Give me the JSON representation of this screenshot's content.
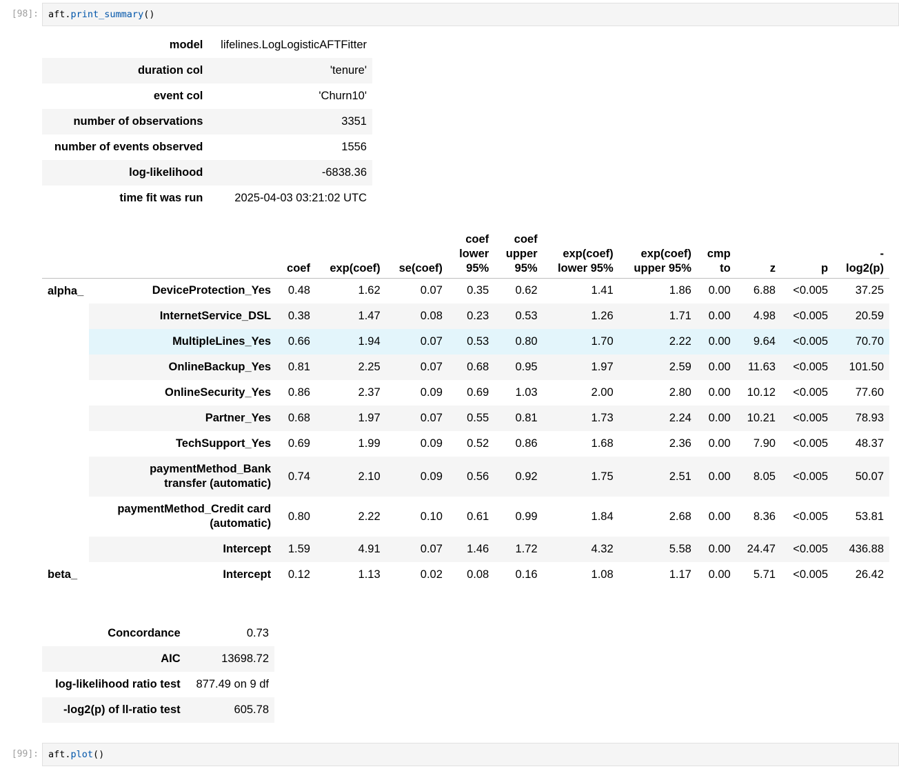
{
  "cells": [
    {
      "prompt": "[98]:",
      "code": {
        "obj": "aft",
        "dot": ".",
        "method": "print_summary",
        "args": "()"
      }
    },
    {
      "prompt": "[99]:",
      "code": {
        "obj": "aft",
        "dot": ".",
        "method": "plot",
        "args": "()"
      }
    }
  ],
  "summary": [
    {
      "label": "model",
      "value": "lifelines.LogLogisticAFTFitter"
    },
    {
      "label": "duration col",
      "value": "'tenure'"
    },
    {
      "label": "event col",
      "value": "'Churn10'"
    },
    {
      "label": "number of observations",
      "value": "3351"
    },
    {
      "label": "number of events observed",
      "value": "1556"
    },
    {
      "label": "log-likelihood",
      "value": "-6838.36"
    },
    {
      "label": "time fit was run",
      "value": "2025-04-03 03:21:02 UTC"
    }
  ],
  "coef_table": {
    "headers": [
      [
        "coef"
      ],
      [
        "exp(coef)"
      ],
      [
        "se(coef)"
      ],
      [
        "coef",
        "lower",
        "95%"
      ],
      [
        "coef",
        "upper",
        "95%"
      ],
      [
        "exp(coef)",
        "lower 95%"
      ],
      [
        "exp(coef)",
        "upper 95%"
      ],
      [
        "cmp",
        "to"
      ],
      [
        "z"
      ],
      [
        "p"
      ],
      [
        "-",
        "log2(p)"
      ]
    ],
    "groups": [
      {
        "name": "alpha_",
        "rows": [
          {
            "var": [
              "DeviceProtection_Yes"
            ],
            "values": [
              "0.48",
              "1.62",
              "0.07",
              "0.35",
              "0.62",
              "1.41",
              "1.86",
              "0.00",
              "6.88",
              "<0.005",
              "37.25"
            ]
          },
          {
            "var": [
              "InternetService_DSL"
            ],
            "values": [
              "0.38",
              "1.47",
              "0.08",
              "0.23",
              "0.53",
              "1.26",
              "1.71",
              "0.00",
              "4.98",
              "<0.005",
              "20.59"
            ]
          },
          {
            "var": [
              "MultipleLines_Yes"
            ],
            "values": [
              "0.66",
              "1.94",
              "0.07",
              "0.53",
              "0.80",
              "1.70",
              "2.22",
              "0.00",
              "9.64",
              "<0.005",
              "70.70"
            ],
            "highlight": true
          },
          {
            "var": [
              "OnlineBackup_Yes"
            ],
            "values": [
              "0.81",
              "2.25",
              "0.07",
              "0.68",
              "0.95",
              "1.97",
              "2.59",
              "0.00",
              "11.63",
              "<0.005",
              "101.50"
            ]
          },
          {
            "var": [
              "OnlineSecurity_Yes"
            ],
            "values": [
              "0.86",
              "2.37",
              "0.09",
              "0.69",
              "1.03",
              "2.00",
              "2.80",
              "0.00",
              "10.12",
              "<0.005",
              "77.60"
            ]
          },
          {
            "var": [
              "Partner_Yes"
            ],
            "values": [
              "0.68",
              "1.97",
              "0.07",
              "0.55",
              "0.81",
              "1.73",
              "2.24",
              "0.00",
              "10.21",
              "<0.005",
              "78.93"
            ]
          },
          {
            "var": [
              "TechSupport_Yes"
            ],
            "values": [
              "0.69",
              "1.99",
              "0.09",
              "0.52",
              "0.86",
              "1.68",
              "2.36",
              "0.00",
              "7.90",
              "<0.005",
              "48.37"
            ]
          },
          {
            "var": [
              "paymentMethod_Bank",
              "transfer (automatic)"
            ],
            "values": [
              "0.74",
              "2.10",
              "0.09",
              "0.56",
              "0.92",
              "1.75",
              "2.51",
              "0.00",
              "8.05",
              "<0.005",
              "50.07"
            ]
          },
          {
            "var": [
              "paymentMethod_Credit card",
              "(automatic)"
            ],
            "values": [
              "0.80",
              "2.22",
              "0.10",
              "0.61",
              "0.99",
              "1.84",
              "2.68",
              "0.00",
              "8.36",
              "<0.005",
              "53.81"
            ]
          },
          {
            "var": [
              "Intercept"
            ],
            "values": [
              "1.59",
              "4.91",
              "0.07",
              "1.46",
              "1.72",
              "4.32",
              "5.58",
              "0.00",
              "24.47",
              "<0.005",
              "436.88"
            ]
          }
        ]
      },
      {
        "name": "beta_",
        "rows": [
          {
            "var": [
              "Intercept"
            ],
            "values": [
              "0.12",
              "1.13",
              "0.02",
              "0.08",
              "0.16",
              "1.08",
              "1.17",
              "0.00",
              "5.71",
              "<0.005",
              "26.42"
            ]
          }
        ]
      }
    ]
  },
  "stats": [
    {
      "label": "Concordance",
      "value": "0.73"
    },
    {
      "label": "AIC",
      "value": "13698.72"
    },
    {
      "label": "log-likelihood ratio test",
      "value": "877.49 on 9 df"
    },
    {
      "label": "-log2(p) of ll-ratio test",
      "value": "605.78"
    }
  ]
}
